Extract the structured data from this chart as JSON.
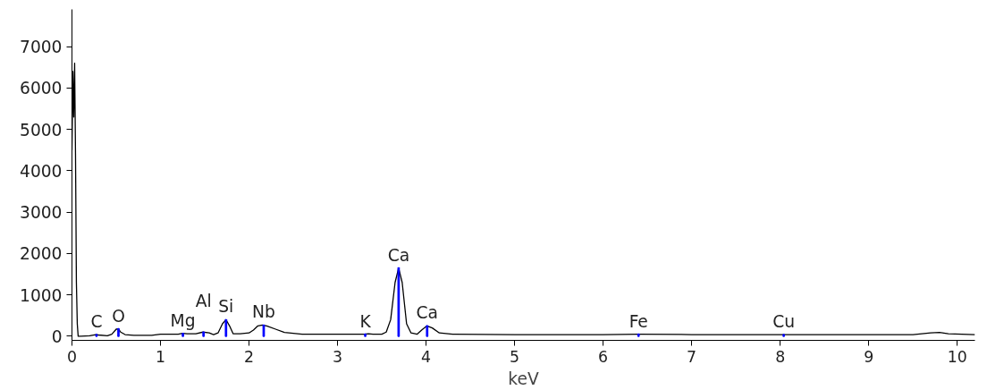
{
  "chart_data": {
    "type": "line",
    "xlabel": "keV",
    "xlim": [
      0,
      10.2
    ],
    "ylim": [
      -100,
      7900
    ],
    "xticks": [
      0,
      1,
      2,
      3,
      4,
      5,
      6,
      7,
      8,
      9,
      10
    ],
    "yticks": [
      0,
      1000,
      2000,
      3000,
      4000,
      5000,
      6000,
      7000
    ],
    "grid": false,
    "marker": "none",
    "line_style": "solid",
    "series": [
      {
        "color": "#000000",
        "x": [
          0,
          0.01,
          0.02,
          0.03,
          0.04,
          0.05,
          0.06,
          0.07,
          0.08,
          0.1,
          0.2,
          0.27,
          0.3,
          0.4,
          0.45,
          0.5,
          0.525,
          0.55,
          0.6,
          0.7,
          0.9,
          1.0,
          1.2,
          1.25,
          1.3,
          1.4,
          1.48,
          1.55,
          1.6,
          1.65,
          1.7,
          1.74,
          1.78,
          1.82,
          1.9,
          2.0,
          2.05,
          2.1,
          2.15,
          2.2,
          2.3,
          2.4,
          2.6,
          3.0,
          3.3,
          3.35,
          3.4,
          3.5,
          3.55,
          3.6,
          3.65,
          3.69,
          3.73,
          3.78,
          3.83,
          3.9,
          3.95,
          4.01,
          4.07,
          4.15,
          4.3,
          5,
          6,
          6.4,
          7,
          8,
          9,
          9.5,
          9.7,
          9.8,
          9.9,
          10.2
        ],
        "values": [
          4500,
          6400,
          5300,
          6600,
          4400,
          1300,
          300,
          0,
          0,
          0,
          10,
          40,
          30,
          10,
          50,
          170,
          180,
          100,
          40,
          20,
          20,
          50,
          50,
          70,
          60,
          60,
          100,
          80,
          40,
          80,
          300,
          400,
          250,
          60,
          60,
          80,
          150,
          250,
          270,
          250,
          170,
          90,
          50,
          50,
          50,
          60,
          50,
          50,
          100,
          400,
          1300,
          1650,
          1300,
          300,
          80,
          50,
          150,
          250,
          200,
          80,
          50,
          40,
          40,
          50,
          40,
          40,
          40,
          40,
          80,
          90,
          60,
          40
        ]
      },
      {
        "type": "bar",
        "color": "#0000ff",
        "x": [
          0.277,
          0.525,
          1.253,
          1.486,
          1.74,
          2.166,
          3.313,
          3.69,
          4.012,
          6.4,
          8.04
        ],
        "values": [
          40,
          180,
          70,
          100,
          400,
          270,
          50,
          1650,
          250,
          50,
          40
        ]
      }
    ],
    "annotations": [
      {
        "text": "C",
        "x": 0.277,
        "y": 40
      },
      {
        "text": "O",
        "x": 0.525,
        "y": 180
      },
      {
        "text": "Mg",
        "x": 1.253,
        "y": 70
      },
      {
        "text": "Al",
        "x": 1.486,
        "y": 100
      },
      {
        "text": "Si",
        "x": 1.74,
        "y": 400
      },
      {
        "text": "Nb",
        "x": 2.166,
        "y": 270
      },
      {
        "text": "K",
        "x": 3.313,
        "y": 50
      },
      {
        "text": "Ca",
        "x": 3.69,
        "y": 1650
      },
      {
        "text": "Ca",
        "x": 4.012,
        "y": 250
      },
      {
        "text": "Fe",
        "x": 6.4,
        "y": 50
      },
      {
        "text": "Cu",
        "x": 8.04,
        "y": 40
      }
    ]
  }
}
